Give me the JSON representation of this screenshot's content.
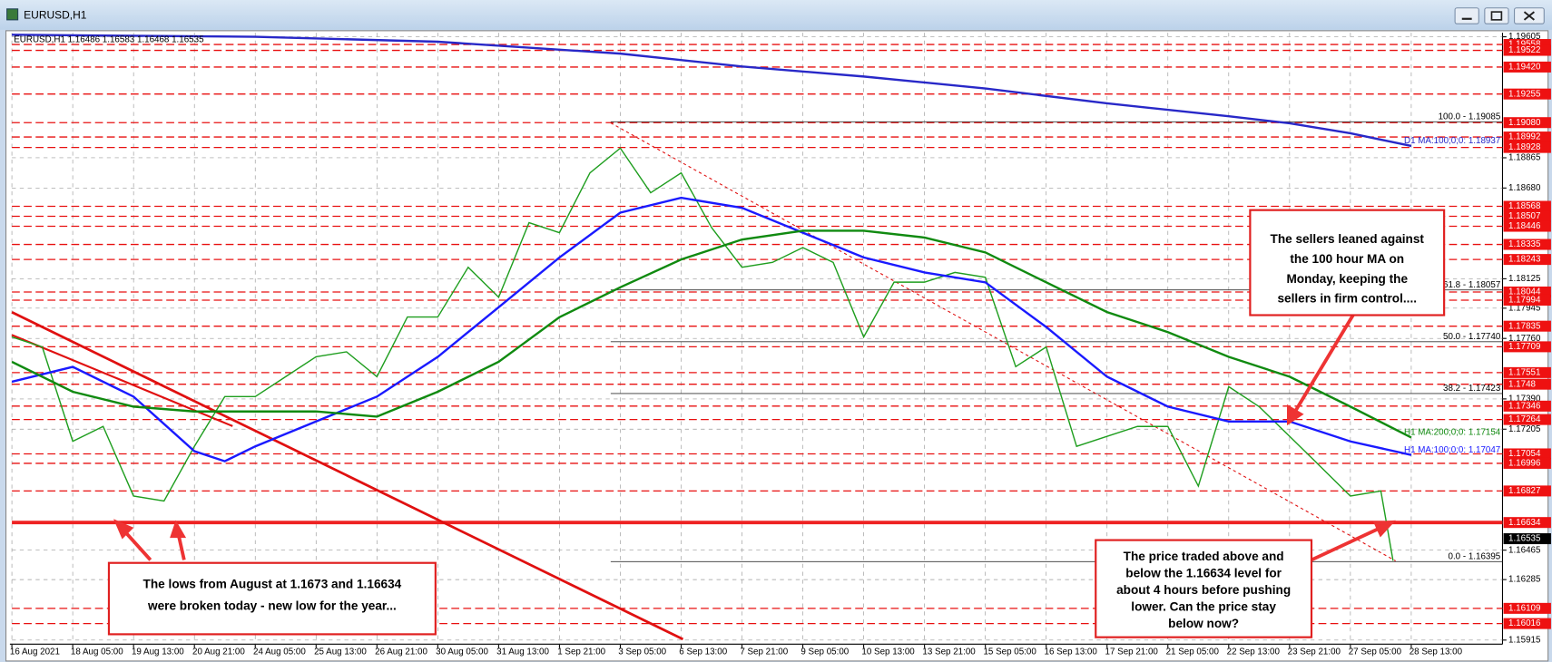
{
  "window_title": "EURUSD,H1",
  "chart_data": {
    "type": "line",
    "header": "EURUSD,H1  1.16486 1.16583 1.16468 1.16535",
    "categories": [
      "16 Aug 2021",
      "18 Aug 05:00",
      "19 Aug 13:00",
      "20 Aug 21:00",
      "24 Aug 05:00",
      "25 Aug 13:00",
      "26 Aug 21:00",
      "30 Aug 05:00",
      "31 Aug 13:00",
      "1 Sep 21:00",
      "3 Sep 05:00",
      "6 Sep 13:00",
      "7 Sep 21:00",
      "9 Sep 05:00",
      "10 Sep 13:00",
      "13 Sep 21:00",
      "15 Sep 05:00",
      "16 Sep 13:00",
      "17 Sep 21:00",
      "21 Sep 05:00",
      "22 Sep 13:00",
      "23 Sep 21:00",
      "27 Sep 05:00",
      "28 Sep 13:00"
    ],
    "xlim": [
      0,
      24.5
    ],
    "ylim": [
      1.1589,
      1.1963
    ],
    "yticks": [
      1.19605,
      1.18865,
      {
        "value": 1.1868,
        "label": "1.18680"
      },
      1.18125,
      1.17945,
      {
        "value": 1.1776,
        "label": "1.17760"
      },
      {
        "value": 1.1739,
        "label": "1.17390"
      },
      1.17205,
      1.16465,
      1.16285,
      1.15915
    ],
    "grid": true,
    "series": [
      {
        "color": "#1f9e1f",
        "x": [
          0,
          0.5,
          1,
          1.5,
          2,
          2.5,
          3,
          3.5,
          4,
          4.5,
          5,
          5.5,
          6,
          6.5,
          7,
          7.5,
          8,
          8.5,
          9,
          9.5,
          10,
          10.5,
          11,
          11.5,
          12,
          12.5,
          13,
          13.5,
          14,
          14.5,
          15,
          15.5,
          16,
          16.5,
          17,
          17.5,
          18,
          18.5,
          19,
          19.5,
          20,
          20.5,
          21,
          21.5,
          22,
          22.5,
          22.7
        ],
        "values": [
          1.17769,
          1.17708,
          1.17131,
          1.17222,
          1.16796,
          1.16766,
          1.171,
          1.17404,
          1.17404,
          1.17526,
          1.17648,
          1.17678,
          1.17526,
          1.17891,
          1.17891,
          1.18195,
          1.18012,
          1.18468,
          1.18407,
          1.18772,
          1.18924,
          1.18651,
          1.18772,
          1.18438,
          1.18195,
          1.18225,
          1.18316,
          1.18225,
          1.17769,
          1.18104,
          1.18104,
          1.18164,
          1.18134,
          1.17587,
          1.17708,
          1.171,
          1.17161,
          1.17222,
          1.17222,
          1.16857,
          1.17465,
          1.17343,
          1.17161,
          1.16979,
          1.16796,
          1.16827,
          1.16401
        ]
      },
      {
        "name": "H1 MA:100;0;0: 1.17047",
        "color": "#1a1aff",
        "x": [
          0,
          1,
          2,
          3,
          3.5,
          4,
          5,
          6,
          7,
          8,
          9,
          10,
          11,
          12,
          13,
          14,
          15,
          16,
          17,
          18,
          19,
          20,
          21,
          22,
          23
        ],
        "values": [
          1.17495,
          1.17586,
          1.17404,
          1.1707,
          1.17009,
          1.171,
          1.17252,
          1.17404,
          1.17647,
          1.17951,
          1.18255,
          1.18529,
          1.1862,
          1.18559,
          1.18407,
          1.18255,
          1.18164,
          1.18103,
          1.1783,
          1.17526,
          1.17343,
          1.17252,
          1.17252,
          1.1713,
          1.17047
        ]
      },
      {
        "name": "H1 MA:200;0;0: 1.17154",
        "color": "#108a10",
        "x": [
          0,
          1,
          2,
          3,
          4,
          5,
          6,
          7,
          8,
          9,
          10,
          11,
          12,
          13,
          14,
          15,
          16,
          17,
          18,
          19,
          20,
          21,
          22,
          23
        ],
        "values": [
          1.17617,
          1.17434,
          1.17343,
          1.17313,
          1.17313,
          1.17313,
          1.17282,
          1.17434,
          1.17617,
          1.1789,
          1.18073,
          1.18243,
          1.18365,
          1.18419,
          1.18419,
          1.18377,
          1.18286,
          1.18103,
          1.17921,
          1.17799,
          1.17647,
          1.17526,
          1.17343,
          1.17154
        ]
      },
      {
        "name": "D1 MA:100;0;0: 1.18937",
        "color": "#2828c8",
        "x": [
          0,
          4,
          7,
          10,
          12,
          14,
          16,
          18,
          20,
          21,
          22,
          23
        ],
        "values": [
          1.19617,
          1.19605,
          1.19575,
          1.19502,
          1.19423,
          1.19362,
          1.19289,
          1.19198,
          1.19119,
          1.19076,
          1.19015,
          1.18937
        ]
      }
    ],
    "levels": [
      1.19558,
      1.19522,
      {
        "value": 1.1942,
        "label": "1.19420"
      },
      1.19255,
      {
        "value": 1.1908,
        "label": "1.19080"
      },
      1.18992,
      1.18928,
      1.18568,
      1.18507,
      1.18446,
      1.18335,
      1.18243,
      1.18044,
      1.17994,
      1.17835,
      1.17709,
      1.17551,
      1.1748,
      1.17346,
      1.17264,
      1.17054,
      1.16996,
      1.16827,
      1.16109,
      1.16016
    ],
    "key_level": 1.16634,
    "last_price": 1.16535,
    "fib_levels": [
      {
        "value": 1.19085,
        "label": "100.0 - 1.19085"
      },
      {
        "value": 1.18057,
        "label": "61.8 - 1.18057"
      },
      {
        "value": 1.1774,
        "label": "50.0 - 1.17740"
      },
      {
        "value": 1.17423,
        "label": "38.2 - 1.17423"
      },
      {
        "value": 1.16395,
        "label": "0.0 - 1.16395"
      }
    ],
    "annotations": [
      {
        "lines": [
          "The lows from August at 1.1673 and 1.16634",
          "were broken today - new low for the year..."
        ]
      },
      {
        "lines": [
          "The sellers leaned against",
          "the 100 hour MA on",
          "Monday, keeping the",
          "sellers in firm control...."
        ]
      },
      {
        "lines": [
          "The price traded above and",
          "below the 1.16634 level for",
          "about 4 hours before pushing",
          "lower. Can the price stay",
          "below now?"
        ]
      }
    ]
  }
}
